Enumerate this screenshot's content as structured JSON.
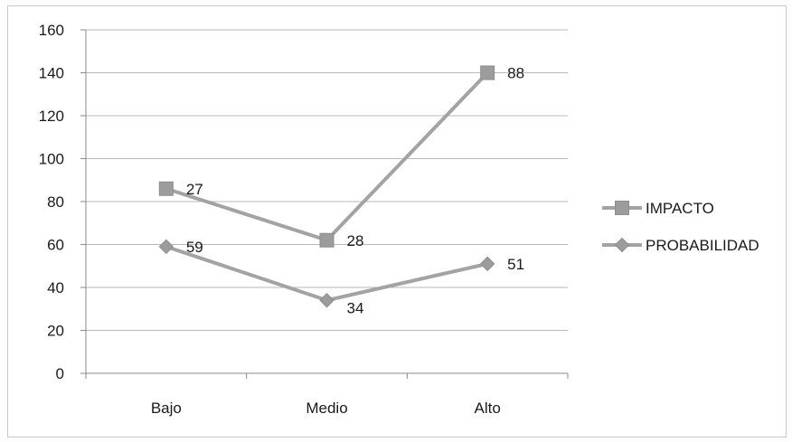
{
  "chart_data": {
    "type": "line",
    "title": "",
    "xlabel": "",
    "ylabel": "",
    "categories": [
      "Bajo",
      "Medio",
      "Alto"
    ],
    "ylim": [
      0,
      160
    ],
    "yticks": [
      0,
      20,
      40,
      60,
      80,
      100,
      120,
      140,
      160
    ],
    "grid": true,
    "legend_position": "right",
    "series": [
      {
        "name": "IMPACTO",
        "values": [
          86,
          62,
          140
        ],
        "data_labels": [
          "27",
          "28",
          "88"
        ],
        "marker": "square",
        "color": "#a3a3a3"
      },
      {
        "name": "PROBABILIDAD",
        "values": [
          59,
          34,
          51
        ],
        "data_labels": [
          "59",
          "34",
          "51"
        ],
        "marker": "diamond",
        "color": "#a3a3a3"
      }
    ]
  },
  "colors": {
    "series_line": "#a3a3a3",
    "marker_fill": "#9c9c9c",
    "grid": "#b9b9b9",
    "axis": "#8a8a8a",
    "frame": "#c9c9c9"
  }
}
